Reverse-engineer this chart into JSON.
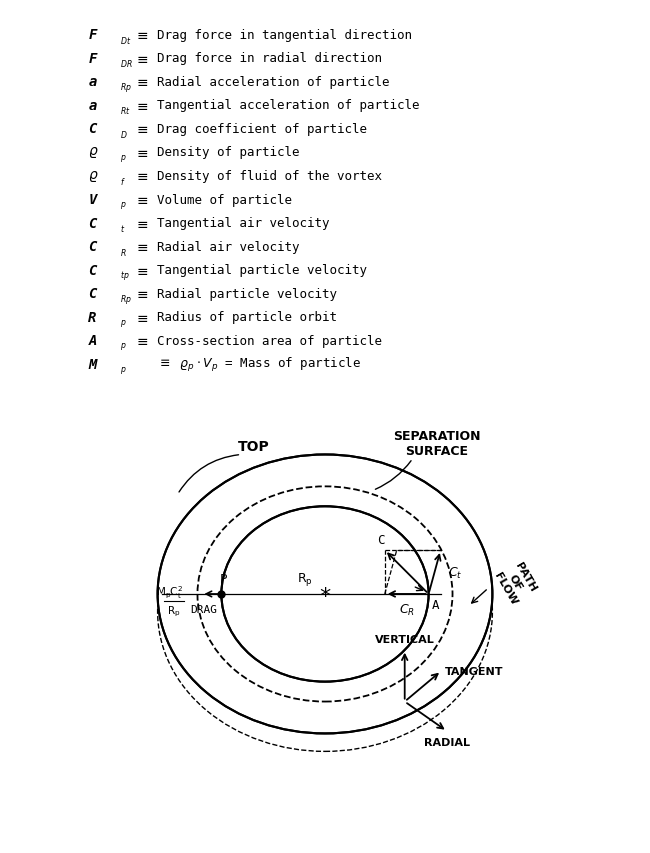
{
  "background_color": "#ffffff",
  "legend_entries": [
    {
      "symbol": "F_{Dt}",
      "description": "Drag force in tangential direction"
    },
    {
      "symbol": "F_{DR}",
      "description": "Drag force in radial direction"
    },
    {
      "symbol": "a_{Rp}",
      "description": "Radial acceleration of particle"
    },
    {
      "symbol": "a_{Rt}",
      "description": "Tangential acceleration of particle"
    },
    {
      "symbol": "C_D",
      "description": "Drag coefficient of particle"
    },
    {
      "symbol": "rho_p",
      "description": "Density of particle"
    },
    {
      "symbol": "rho_f",
      "description": "Density of fluid of the vortex"
    },
    {
      "symbol": "V_p",
      "description": "Volume of particle"
    },
    {
      "symbol": "C_t",
      "description": "Tangential air velocity"
    },
    {
      "symbol": "C_R",
      "description": "Radial air velocity"
    },
    {
      "symbol": "C_{tp}",
      "description": "Tangential particle velocity"
    },
    {
      "symbol": "C_{Rp}",
      "description": "Radial particle velocity"
    },
    {
      "symbol": "R_p",
      "description": "Radius of particle orbit"
    },
    {
      "symbol": "A_p",
      "description": "Cross-section area of particle"
    },
    {
      "symbol": "M_p",
      "description": "= Mass of particle"
    }
  ],
  "top_label": "TOP",
  "sep_label": "SEPARATION\nSURFACE",
  "vertical_label": "VERTICAL",
  "tangent_label": "TANGENT",
  "radial_label": "RADIAL",
  "path_label": "PATH\nOF\nFLOW",
  "drag_label": "DRAG",
  "P_label": "P",
  "Rp_label": "R_p",
  "C_label": "C",
  "Ct_label": "C_t",
  "CR_label": "C_R",
  "A_label": "A"
}
